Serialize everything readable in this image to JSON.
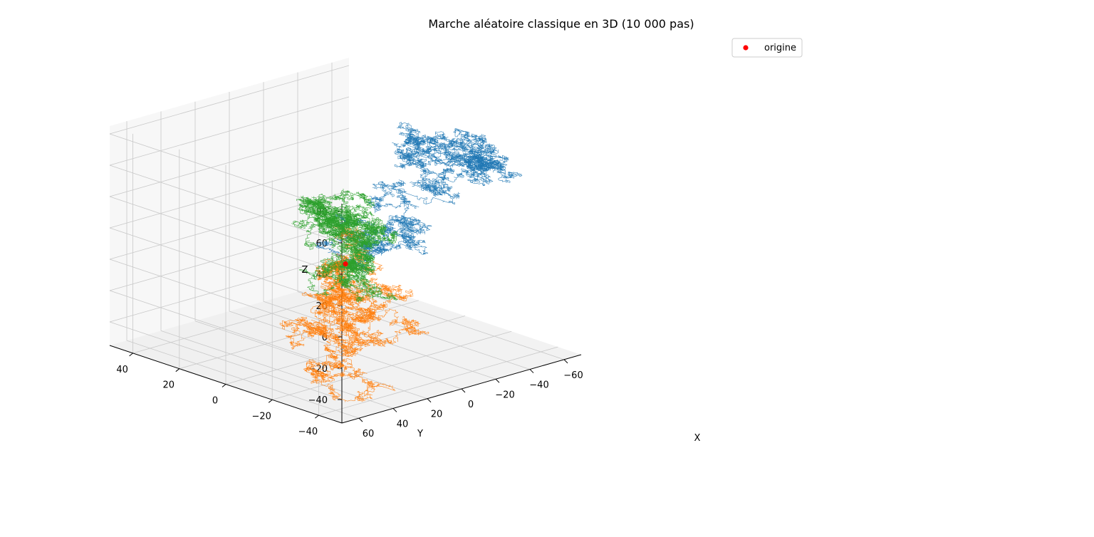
{
  "chart_data": {
    "type": "scatter",
    "projection": "3d",
    "title": "Marche aléatoire classique en 3D (10 000 pas)",
    "xlabel": "X",
    "ylabel": "Y",
    "zlabel": "Z",
    "xlim": [
      -70,
      70
    ],
    "ylim": [
      -50,
      50
    ],
    "zlim": [
      -55,
      85
    ],
    "xticks": [
      "-60",
      "-40",
      "-20",
      "0",
      "20",
      "40",
      "60"
    ],
    "yticks": [
      "-40",
      "-20",
      "0",
      "20",
      "40"
    ],
    "zticks": [
      "-40",
      "-20",
      "0",
      "20",
      "40",
      "60",
      "80"
    ],
    "grid": true,
    "legend": {
      "position": "top-right",
      "entries": [
        "origine"
      ]
    },
    "origin_point": {
      "name": "origine",
      "x": 0,
      "y": 0,
      "z": 0,
      "color": "#ff0000"
    },
    "series": [
      {
        "color": "#1f77b4",
        "steps": 10000,
        "seed": 11,
        "waypoints": [
          [
            0,
            0,
            0
          ],
          [
            -3,
            -4,
            10
          ],
          [
            -8,
            -6,
            18
          ],
          [
            -15,
            -6,
            25
          ],
          [
            -28,
            -8,
            32
          ],
          [
            -42,
            -10,
            38
          ],
          [
            -55,
            -10,
            45
          ],
          [
            -62,
            -15,
            48
          ],
          [
            -55,
            -18,
            55
          ],
          [
            -50,
            -15,
            65
          ],
          [
            -40,
            -10,
            68
          ],
          [
            -30,
            -10,
            62
          ],
          [
            -38,
            -12,
            70
          ],
          [
            -45,
            -14,
            66
          ]
        ]
      },
      {
        "color": "#ff7f0e",
        "steps": 10000,
        "seed": 23,
        "waypoints": [
          [
            0,
            0,
            0
          ],
          [
            8,
            -5,
            2
          ],
          [
            14,
            -10,
            -3
          ],
          [
            20,
            -15,
            -10
          ],
          [
            25,
            -18,
            -16
          ],
          [
            30,
            -22,
            -22
          ],
          [
            34,
            -25,
            -28
          ],
          [
            38,
            -28,
            -32
          ],
          [
            40,
            -30,
            -35
          ],
          [
            41,
            -31,
            -42
          ]
        ]
      },
      {
        "color": "#2ca02c",
        "steps": 10000,
        "seed": 37,
        "waypoints": [
          [
            0,
            0,
            0
          ],
          [
            2,
            0,
            -8
          ],
          [
            0,
            2,
            -12
          ],
          [
            -3,
            0,
            -4
          ],
          [
            -5,
            0,
            8
          ],
          [
            -4,
            0,
            18
          ],
          [
            -1,
            0,
            25
          ],
          [
            5,
            -5,
            35
          ],
          [
            13,
            -9,
            38
          ],
          [
            22,
            -12,
            40
          ],
          [
            30,
            -15,
            44
          ],
          [
            38,
            -18,
            48
          ],
          [
            42,
            -20,
            42
          ],
          [
            45,
            -22,
            35
          ]
        ]
      }
    ]
  }
}
